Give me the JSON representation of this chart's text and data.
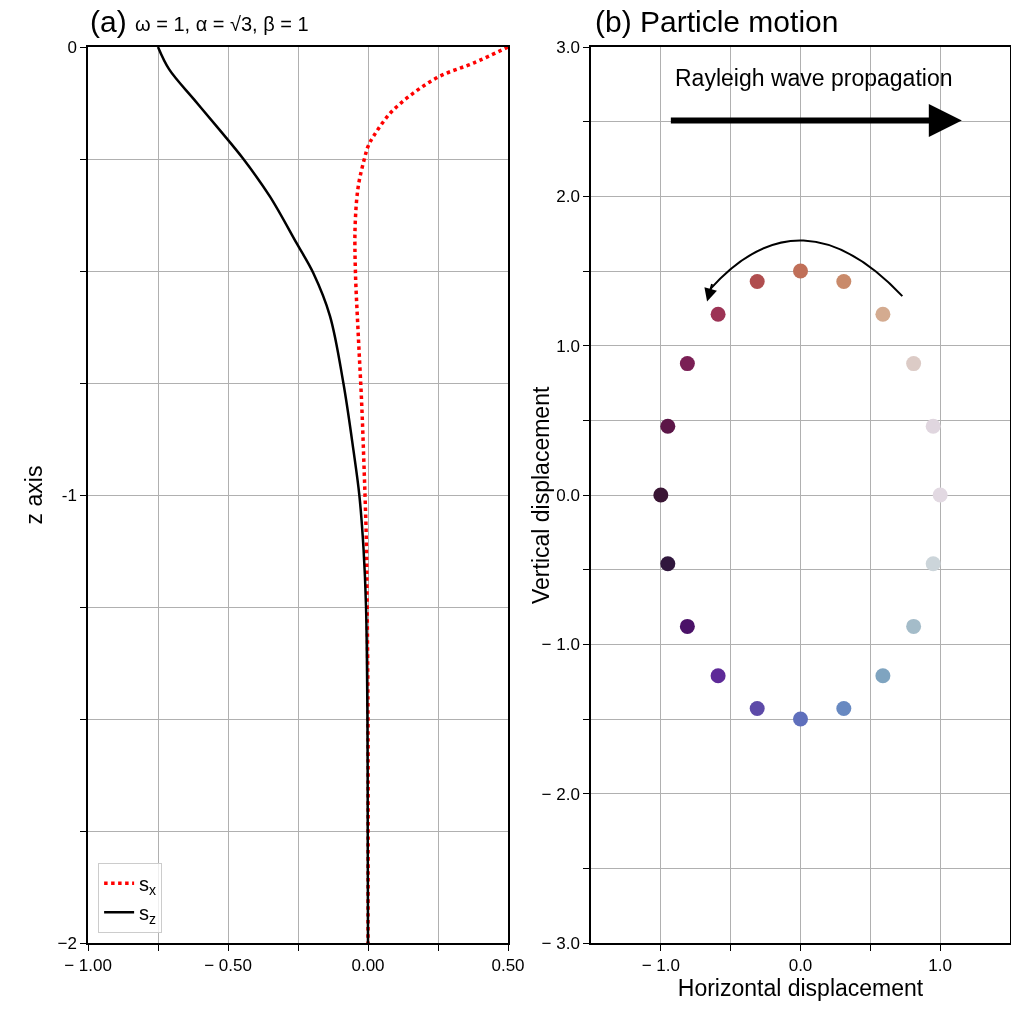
{
  "chart_data": [
    {
      "type": "line",
      "title": "(a)",
      "subtitle": "ω = 1, α = √3, β = 1",
      "ylabel": "z axis",
      "xlim": [
        -1.0,
        0.5
      ],
      "ylim": [
        -2,
        0
      ],
      "xticks": [
        {
          "value": -1.0,
          "label": "− 1.00"
        },
        {
          "value": -0.75,
          "label": null
        },
        {
          "value": -0.5,
          "label": "− 0.50"
        },
        {
          "value": -0.25,
          "label": null
        },
        {
          "value": 0,
          "label": "0.00"
        },
        {
          "value": 0.25,
          "label": null
        },
        {
          "value": 0.5,
          "label": "0.50"
        }
      ],
      "yticks": [
        0,
        {
          "value": -0.25,
          "label": null
        },
        {
          "value": -0.5,
          "label": null
        },
        {
          "value": -0.75,
          "label": null
        },
        {
          "value": -1,
          "label": "-1"
        },
        {
          "value": -1.25,
          "label": null
        },
        {
          "value": -1.5,
          "label": null
        },
        {
          "value": -1.75,
          "label": null
        },
        {
          "value": -2,
          "label": "−2"
        }
      ],
      "grid": true,
      "legend": "bottom left",
      "series": [
        {
          "name": "s$_{x}$",
          "color": "#ff0000",
          "line_style": "dotted",
          "x": [
            0.5,
            0.376,
            0.257,
            0.162,
            0.079,
            0.019,
            0,
            -0.011,
            -0.035,
            -0.046,
            -0.045,
            -0.035,
            -0.023,
            -0.014,
            -0.006,
            -0.003,
            0,
            0
          ],
          "values": [
            0,
            -0.036,
            -0.065,
            -0.103,
            -0.148,
            -0.2,
            -0.222,
            -0.245,
            -0.312,
            -0.4,
            -0.5,
            -0.64,
            -0.79,
            -0.94,
            -1.1,
            -1.25,
            -1.5,
            -2
          ]
        },
        {
          "name": "s$_{z}$",
          "color": "#000000",
          "line_style": "solid",
          "x": [
            -0.75,
            -0.71,
            -0.62,
            -0.53,
            -0.445,
            -0.35,
            -0.255,
            -0.195,
            -0.136,
            -0.088,
            -0.052,
            -0.031,
            -0.016,
            -0.007,
            -0.002,
            -0.001,
            0
          ],
          "values": [
            0,
            -0.05,
            -0.118,
            -0.185,
            -0.25,
            -0.334,
            -0.438,
            -0.505,
            -0.6,
            -0.75,
            -0.9,
            -1.0,
            -1.12,
            -1.25,
            -1.5,
            -1.75,
            -2
          ]
        }
      ]
    },
    {
      "type": "scatter",
      "title": "(b) Particle motion",
      "xlabel": "Horizontal displacement",
      "ylabel": "Vertical displacement",
      "annotations": [
        "Rayleigh wave propagation"
      ],
      "xlim": [
        -1.5,
        1.5
      ],
      "ylim": [
        -3.0,
        3.0
      ],
      "xticks": [
        {
          "value": -1.0,
          "label": "− 1.0"
        },
        {
          "value": -0.5,
          "label": null
        },
        {
          "value": 0,
          "label": "0.0"
        },
        {
          "value": 0.5,
          "label": null
        },
        {
          "value": 1.0,
          "label": "1.0"
        }
      ],
      "yticks": [
        {
          "value": 3.0,
          "label": "3.0"
        },
        {
          "value": 2.5,
          "label": null
        },
        {
          "value": 2.0,
          "label": "2.0"
        },
        {
          "value": 1.5,
          "label": null
        },
        {
          "value": 1.0,
          "label": "1.0"
        },
        {
          "value": 0.5,
          "label": null
        },
        {
          "value": 0,
          "label": "0.0"
        },
        {
          "value": -0.5,
          "label": null
        },
        {
          "value": -1.0,
          "label": "− 1.0"
        },
        {
          "value": -1.5,
          "label": null
        },
        {
          "value": -2.0,
          "label": "− 2.0"
        },
        {
          "value": -2.5,
          "label": null
        },
        {
          "value": -3.0,
          "label": "− 3.0"
        }
      ],
      "grid": true,
      "marker": "circle",
      "series": [
        {
          "x": [
            1.0,
            0.95,
            0.81,
            0.59,
            0.31,
            0,
            -0.31,
            -0.59,
            -0.81,
            -0.95,
            -1.0,
            -0.95,
            -0.81,
            -0.59,
            -0.31,
            0,
            0.31,
            0.59,
            0.81,
            0.95
          ],
          "values": [
            0,
            0.46,
            0.88,
            1.21,
            1.43,
            1.5,
            1.43,
            1.21,
            0.88,
            0.46,
            0,
            -0.46,
            -0.88,
            -1.21,
            -1.43,
            -1.5,
            -1.43,
            -1.21,
            -0.88,
            -0.46
          ],
          "colors": [
            "#e2d9e2",
            "#e0d6df",
            "#dccbc6",
            "#d4ab90",
            "#c98a6a",
            "#c06f58",
            "#b04e4f",
            "#9c3355",
            "#7a1f55",
            "#5c1648",
            "#3a1635",
            "#30173d",
            "#4b1268",
            "#5e2a98",
            "#5d4aa8",
            "#5f6fbc",
            "#6889c1",
            "#7fa4c0",
            "#a4bcc9",
            "#ccd5da"
          ]
        }
      ]
    }
  ]
}
